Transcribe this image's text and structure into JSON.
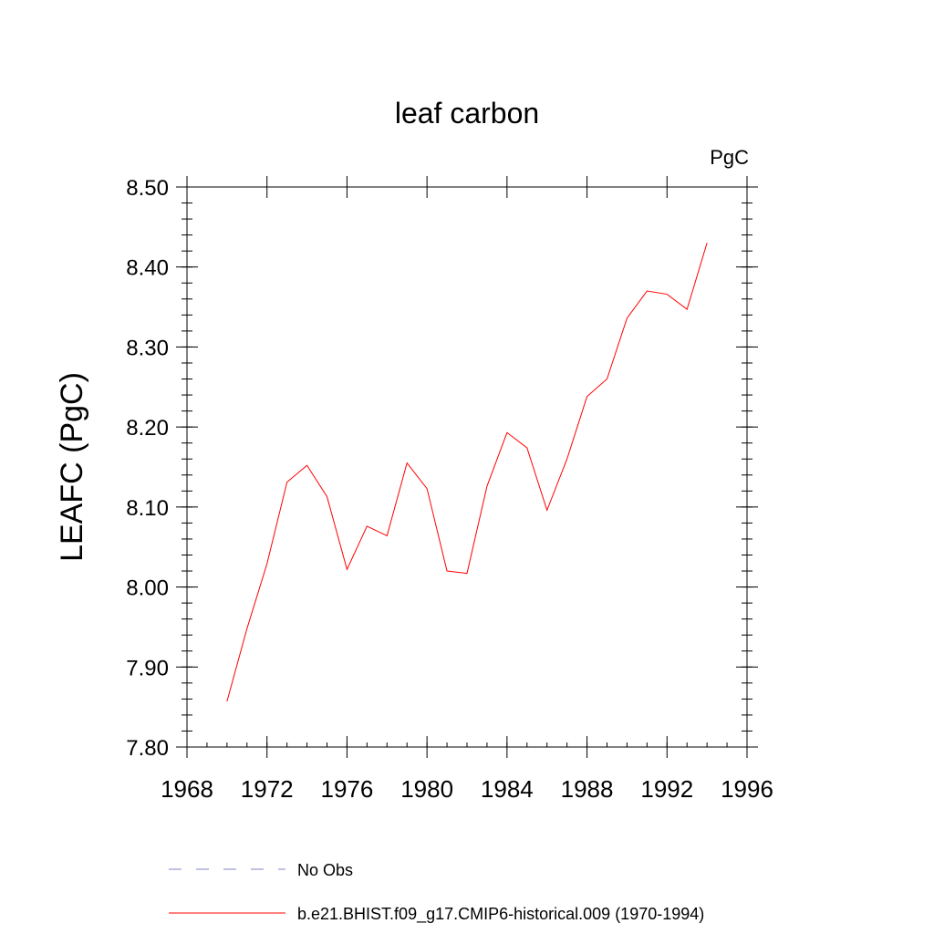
{
  "chart_data": {
    "type": "line",
    "title": "leaf carbon",
    "units_label": "PgC",
    "ylabel": "LEAFC  (PgC)",
    "xlabel": "",
    "xlim": [
      1968,
      1996
    ],
    "ylim": [
      7.8,
      8.5
    ],
    "x_ticks": [
      "1968",
      "1972",
      "1976",
      "1980",
      "1984",
      "1988",
      "1992",
      "1996"
    ],
    "y_ticks": [
      "7.80",
      "7.90",
      "8.00",
      "8.10",
      "8.20",
      "8.30",
      "8.40",
      "8.50"
    ],
    "grid": false,
    "legend_position": "bottom",
    "colors": {
      "model": "#ff0000",
      "obs": "#8080c0"
    },
    "series": [
      {
        "name": "b.e21.BHIST.f09_g17.CMIP6-historical.009 (1970-1994)",
        "x": [
          1970,
          1971,
          1972,
          1973,
          1974,
          1975,
          1976,
          1977,
          1978,
          1979,
          1980,
          1981,
          1982,
          1983,
          1984,
          1985,
          1986,
          1987,
          1988,
          1989,
          1990,
          1991,
          1992,
          1993,
          1994
        ],
        "values": [
          7.857,
          7.948,
          8.029,
          8.131,
          8.152,
          8.113,
          8.022,
          8.076,
          8.064,
          8.155,
          8.123,
          8.02,
          8.017,
          8.126,
          8.193,
          8.174,
          8.096,
          8.16,
          8.238,
          8.26,
          8.336,
          8.37,
          8.366,
          8.347,
          8.43
        ]
      }
    ],
    "legend": [
      {
        "label": "No Obs",
        "style": "dashed"
      },
      {
        "label": "b.e21.BHIST.f09_g17.CMIP6-historical.009 (1970-1994)",
        "style": "solid"
      }
    ]
  }
}
